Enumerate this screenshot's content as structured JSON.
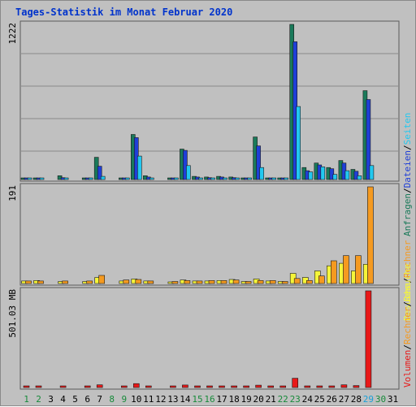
{
  "title": "Tages-Statistik im Monat Februar 2020",
  "colors": {
    "background": "#c0c0c0",
    "anfragen": "#1a7a5a",
    "dateien": "#1f3fd8",
    "seiten": "#22c8f0",
    "besuche": "#f5f53a",
    "rechner": "#f59a20",
    "volumen": "#e81818",
    "weekend_label": "#178a3a",
    "today_label": "#1aa0d8"
  },
  "chart_data": [
    {
      "type": "bar",
      "panel": "top",
      "y_tick_label": "1222",
      "ylim": [
        0,
        1222
      ],
      "x": [
        1,
        2,
        3,
        4,
        5,
        6,
        7,
        8,
        9,
        10,
        11,
        12,
        13,
        14,
        15,
        16,
        17,
        18,
        19,
        20,
        21,
        22,
        23,
        24,
        25,
        26,
        27,
        28,
        29,
        30,
        31
      ],
      "legend": [
        "Anfragen",
        "/",
        "Dateien",
        "/",
        "Seiten"
      ],
      "series": [
        {
          "name": "Anfragen",
          "color": "#1a7a5a",
          "values": [
            8,
            8,
            0,
            30,
            0,
            8,
            175,
            0,
            8,
            355,
            30,
            0,
            8,
            240,
            25,
            20,
            25,
            20,
            10,
            335,
            8,
            8,
            1222,
            95,
            130,
            95,
            150,
            80,
            700,
            0,
            0
          ]
        },
        {
          "name": "Dateien",
          "color": "#1f3fd8",
          "values": [
            5,
            5,
            0,
            15,
            0,
            5,
            105,
            0,
            5,
            330,
            20,
            0,
            5,
            230,
            20,
            15,
            20,
            15,
            5,
            265,
            5,
            5,
            1085,
            70,
            115,
            85,
            130,
            65,
            630,
            0,
            0
          ]
        },
        {
          "name": "Seiten",
          "color": "#22c8f0",
          "values": [
            3,
            3,
            0,
            8,
            0,
            3,
            25,
            0,
            3,
            185,
            8,
            0,
            3,
            110,
            10,
            10,
            10,
            8,
            3,
            95,
            3,
            3,
            575,
            60,
            100,
            40,
            70,
            30,
            110,
            0,
            0
          ]
        }
      ]
    },
    {
      "type": "bar",
      "panel": "middle",
      "y_tick_label": "191",
      "ylim": [
        0,
        191
      ],
      "x": [
        1,
        2,
        3,
        4,
        5,
        6,
        7,
        8,
        9,
        10,
        11,
        12,
        13,
        14,
        15,
        16,
        17,
        18,
        19,
        20,
        21,
        22,
        23,
        24,
        25,
        26,
        27,
        28,
        29,
        30,
        31
      ],
      "legend": [
        "Besuche",
        "/",
        "Rechner"
      ],
      "series": [
        {
          "name": "Besuche",
          "color": "#f5f53a",
          "values": [
            5,
            6,
            0,
            4,
            0,
            4,
            12,
            0,
            5,
            9,
            5,
            0,
            3,
            7,
            5,
            5,
            6,
            8,
            4,
            9,
            5,
            4,
            20,
            12,
            25,
            35,
            40,
            25,
            38,
            0,
            0
          ]
        },
        {
          "name": "Rechner",
          "color": "#f59a20",
          "values": [
            5,
            5,
            0,
            5,
            0,
            5,
            16,
            0,
            7,
            8,
            5,
            0,
            4,
            6,
            5,
            6,
            6,
            7,
            4,
            6,
            6,
            4,
            10,
            6,
            15,
            45,
            55,
            55,
            191,
            0,
            0
          ]
        }
      ]
    },
    {
      "type": "bar",
      "panel": "bottom",
      "y_tick_label": "501.03 MB",
      "ylim": [
        0,
        501.03
      ],
      "x": [
        1,
        2,
        3,
        4,
        5,
        6,
        7,
        8,
        9,
        10,
        11,
        12,
        13,
        14,
        15,
        16,
        17,
        18,
        19,
        20,
        21,
        22,
        23,
        24,
        25,
        26,
        27,
        28,
        29,
        30,
        31
      ],
      "legend": [
        "Volumen",
        "/",
        "Rechner",
        "/",
        "Besuche"
      ],
      "series": [
        {
          "name": "Volumen",
          "color": "#e81818",
          "values": [
            8,
            8,
            0,
            8,
            0,
            8,
            14,
            0,
            8,
            20,
            8,
            0,
            4,
            13,
            8,
            8,
            8,
            8,
            4,
            12,
            8,
            6,
            48,
            8,
            8,
            8,
            14,
            10,
            501.03,
            0,
            0
          ]
        }
      ]
    }
  ],
  "x_labels": [
    {
      "text": "1",
      "color": "#178a3a"
    },
    {
      "text": "2",
      "color": "#178a3a"
    },
    {
      "text": "3",
      "color": "#000000"
    },
    {
      "text": "4",
      "color": "#000000"
    },
    {
      "text": "5",
      "color": "#000000"
    },
    {
      "text": "6",
      "color": "#000000"
    },
    {
      "text": "7",
      "color": "#000000"
    },
    {
      "text": "8",
      "color": "#178a3a"
    },
    {
      "text": "9",
      "color": "#178a3a"
    },
    {
      "text": "10",
      "color": "#000000"
    },
    {
      "text": "11",
      "color": "#000000"
    },
    {
      "text": "12",
      "color": "#000000"
    },
    {
      "text": "13",
      "color": "#000000"
    },
    {
      "text": "14",
      "color": "#000000"
    },
    {
      "text": "15",
      "color": "#178a3a"
    },
    {
      "text": "16",
      "color": "#178a3a"
    },
    {
      "text": "17",
      "color": "#000000"
    },
    {
      "text": "18",
      "color": "#000000"
    },
    {
      "text": "19",
      "color": "#000000"
    },
    {
      "text": "20",
      "color": "#000000"
    },
    {
      "text": "21",
      "color": "#000000"
    },
    {
      "text": "22",
      "color": "#178a3a"
    },
    {
      "text": "23",
      "color": "#178a3a"
    },
    {
      "text": "24",
      "color": "#000000"
    },
    {
      "text": "25",
      "color": "#000000"
    },
    {
      "text": "26",
      "color": "#000000"
    },
    {
      "text": "27",
      "color": "#000000"
    },
    {
      "text": "28",
      "color": "#000000"
    },
    {
      "text": "29",
      "color": "#1aa0d8"
    },
    {
      "text": "30",
      "color": "#178a3a"
    },
    {
      "text": "31",
      "color": "#000000"
    }
  ]
}
